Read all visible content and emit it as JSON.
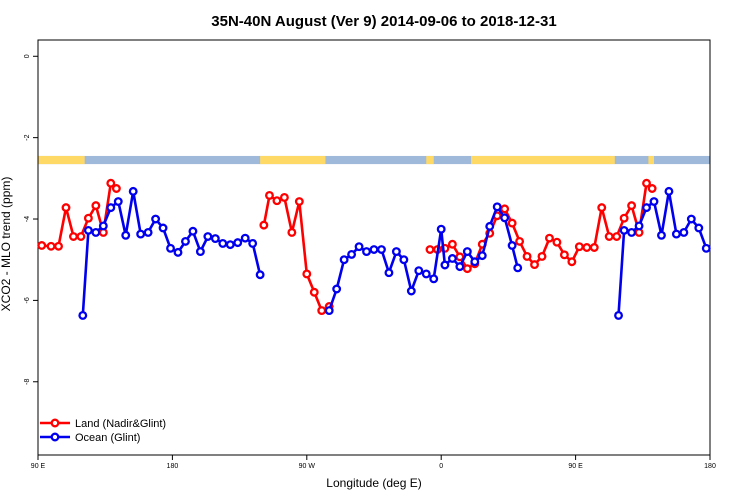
{
  "chart_data": {
    "type": "line",
    "title": "35N-40N August (Ver 9)   2014-09-06 to 2018-12-31",
    "xlabel": "Longitude (deg E)",
    "ylabel": "XCO2 - MLO trend (ppm)",
    "xlim": [
      0,
      360
    ],
    "ylim": [
      -9.8,
      0.4
    ],
    "x_ticks": [
      {
        "value": 0,
        "label": "90 E"
      },
      {
        "value": 72,
        "label": "180"
      },
      {
        "value": 144,
        "label": "90 W"
      },
      {
        "value": 216,
        "label": "0"
      },
      {
        "value": 288,
        "label": "90 E"
      },
      {
        "value": 360,
        "label": "180"
      }
    ],
    "y_ticks": [
      {
        "value": 0,
        "label": "0"
      },
      {
        "value": -2,
        "label": "-2"
      },
      {
        "value": -4,
        "label": "-4"
      },
      {
        "value": -6,
        "label": "-6"
      },
      {
        "value": -8,
        "label": "-8"
      }
    ],
    "grid": false,
    "legend_position": "bottom-left",
    "colors": {
      "land": "#ff0000",
      "ocean": "#0000ee",
      "map_land": "#ffd966",
      "map_ocean": "#9fb9db"
    },
    "map_strip": {
      "y_range": [
        -2.45,
        -2.65
      ],
      "land_segments": [
        [
          0,
          25
        ],
        [
          119,
          154
        ],
        [
          208,
          212
        ],
        [
          232,
          309
        ],
        [
          327,
          330
        ]
      ]
    },
    "series": [
      {
        "name": "Land (Nadir&Glint)",
        "color": "#ff0000",
        "segments": [
          [
            [
              2,
              -4.65
            ],
            [
              7,
              -4.67
            ],
            [
              11,
              -4.67
            ],
            [
              15,
              -3.72
            ],
            [
              19,
              -4.43
            ],
            [
              23,
              -4.43
            ],
            [
              27,
              -3.98
            ],
            [
              31,
              -3.67
            ],
            [
              35,
              -4.33
            ],
            [
              39,
              -3.12
            ],
            [
              42,
              -3.25
            ]
          ],
          [
            [
              121,
              -4.15
            ],
            [
              124,
              -3.42
            ],
            [
              128,
              -3.55
            ],
            [
              132,
              -3.47
            ],
            [
              136,
              -4.33
            ],
            [
              140,
              -3.57
            ],
            [
              144,
              -5.35
            ],
            [
              148,
              -5.8
            ],
            [
              152,
              -6.25
            ],
            [
              156,
              -6.15
            ]
          ],
          [
            [
              210,
              -4.75
            ],
            [
              214,
              -4.75
            ],
            [
              218,
              -4.72
            ],
            [
              222,
              -4.62
            ],
            [
              226,
              -4.93
            ],
            [
              230,
              -5.22
            ],
            [
              234,
              -5.1
            ],
            [
              238,
              -4.62
            ],
            [
              242,
              -4.35
            ],
            [
              246,
              -3.92
            ],
            [
              250,
              -3.75
            ],
            [
              254,
              -4.1
            ],
            [
              258,
              -4.55
            ],
            [
              262,
              -4.92
            ],
            [
              266,
              -5.12
            ],
            [
              270,
              -4.92
            ],
            [
              274,
              -4.47
            ],
            [
              278,
              -4.57
            ],
            [
              282,
              -4.88
            ],
            [
              286,
              -5.05
            ],
            [
              290,
              -4.68
            ],
            [
              294,
              -4.7
            ],
            [
              298,
              -4.7
            ],
            [
              302,
              -3.72
            ],
            [
              306,
              -4.43
            ],
            [
              310,
              -4.43
            ],
            [
              314,
              -3.98
            ],
            [
              318,
              -3.67
            ],
            [
              322,
              -4.33
            ],
            [
              326,
              -3.12
            ],
            [
              329,
              -3.25
            ]
          ]
        ]
      },
      {
        "name": "Ocean (Glint)",
        "color": "#0000ee",
        "segments": [
          [
            [
              24,
              -6.37
            ],
            [
              27,
              -4.28
            ],
            [
              31,
              -4.33
            ],
            [
              35,
              -4.17
            ],
            [
              39,
              -3.72
            ],
            [
              43,
              -3.57
            ],
            [
              47,
              -4.4
            ],
            [
              51,
              -3.32
            ],
            [
              55,
              -4.37
            ],
            [
              59,
              -4.33
            ],
            [
              63,
              -4.0
            ],
            [
              67,
              -4.22
            ],
            [
              71,
              -4.72
            ],
            [
              75,
              -4.82
            ],
            [
              79,
              -4.55
            ],
            [
              83,
              -4.3
            ],
            [
              87,
              -4.8
            ],
            [
              91,
              -4.43
            ],
            [
              95,
              -4.48
            ],
            [
              99,
              -4.6
            ],
            [
              103,
              -4.63
            ],
            [
              107,
              -4.58
            ],
            [
              111,
              -4.47
            ],
            [
              115,
              -4.6
            ],
            [
              119,
              -5.37
            ]
          ],
          [
            [
              156,
              -6.25
            ],
            [
              160,
              -5.72
            ],
            [
              164,
              -5.0
            ],
            [
              168,
              -4.87
            ],
            [
              172,
              -4.68
            ],
            [
              176,
              -4.8
            ],
            [
              180,
              -4.75
            ],
            [
              184,
              -4.75
            ],
            [
              188,
              -5.32
            ],
            [
              192,
              -4.8
            ],
            [
              196,
              -5.0
            ],
            [
              200,
              -5.77
            ],
            [
              204,
              -5.27
            ],
            [
              208,
              -5.35
            ],
            [
              212,
              -5.47
            ],
            [
              216,
              -4.25
            ],
            [
              218,
              -5.13
            ],
            [
              222,
              -4.97
            ],
            [
              226,
              -5.17
            ],
            [
              230,
              -4.8
            ],
            [
              234,
              -5.05
            ],
            [
              238,
              -4.9
            ],
            [
              242,
              -4.18
            ],
            [
              246,
              -3.7
            ],
            [
              250,
              -3.97
            ],
            [
              254,
              -4.65
            ],
            [
              257,
              -5.2
            ]
          ],
          [
            [
              311,
              -6.37
            ],
            [
              314,
              -4.28
            ],
            [
              318,
              -4.33
            ],
            [
              322,
              -4.17
            ],
            [
              326,
              -3.72
            ],
            [
              330,
              -3.57
            ],
            [
              334,
              -4.4
            ],
            [
              338,
              -3.32
            ],
            [
              342,
              -4.37
            ],
            [
              346,
              -4.33
            ],
            [
              350,
              -4.0
            ],
            [
              354,
              -4.22
            ],
            [
              358,
              -4.72
            ]
          ]
        ]
      }
    ]
  }
}
